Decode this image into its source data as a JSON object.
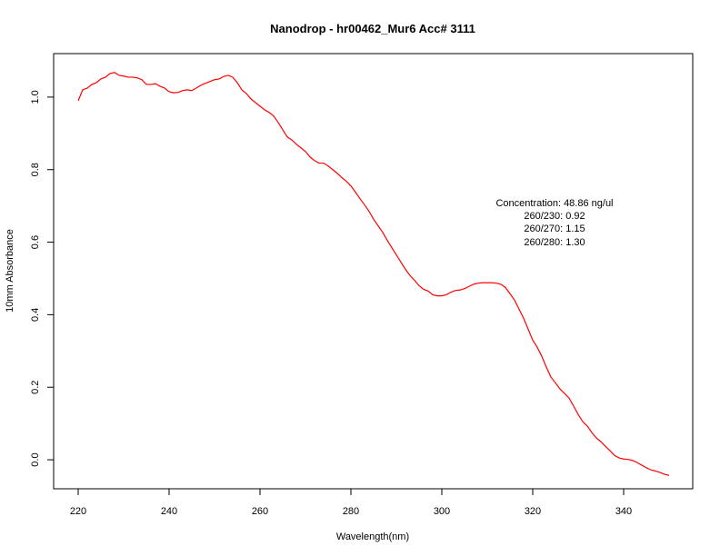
{
  "chart_data": {
    "type": "line",
    "title": "Nanodrop - hr00462_Mur6 Acc# 3111",
    "xlabel": "Wavelength(nm)",
    "ylabel": "10mm Absorbance",
    "xlim": [
      220,
      350
    ],
    "ylim": [
      -0.08,
      1.12
    ],
    "x_ticks": [
      220,
      240,
      260,
      280,
      300,
      320,
      340
    ],
    "x_tick_labels": [
      "220",
      "240",
      "260",
      "280",
      "300",
      "320",
      "340"
    ],
    "y_ticks": [
      0.0,
      0.2,
      0.4,
      0.6,
      0.8,
      1.0
    ],
    "y_tick_labels": [
      "0.0",
      "0.2",
      "0.4",
      "0.6",
      "0.8",
      "1.0"
    ],
    "grid": false,
    "series": [
      {
        "color": "#ff0000",
        "points": [
          [
            220,
            0.99
          ],
          [
            221,
            1.02
          ],
          [
            222,
            1.025
          ],
          [
            223,
            1.035
          ],
          [
            224,
            1.04
          ],
          [
            225,
            1.05
          ],
          [
            226,
            1.055
          ],
          [
            227,
            1.065
          ],
          [
            228,
            1.068
          ],
          [
            229,
            1.06
          ],
          [
            230,
            1.058
          ],
          [
            231,
            1.055
          ],
          [
            232,
            1.055
          ],
          [
            233,
            1.053
          ],
          [
            234,
            1.048
          ],
          [
            235,
            1.035
          ],
          [
            236,
            1.035
          ],
          [
            237,
            1.037
          ],
          [
            238,
            1.03
          ],
          [
            239,
            1.025
          ],
          [
            240,
            1.015
          ],
          [
            241,
            1.012
          ],
          [
            242,
            1.013
          ],
          [
            243,
            1.018
          ],
          [
            244,
            1.02
          ],
          [
            245,
            1.018
          ],
          [
            246,
            1.025
          ],
          [
            247,
            1.033
          ],
          [
            248,
            1.038
          ],
          [
            249,
            1.043
          ],
          [
            250,
            1.048
          ],
          [
            251,
            1.05
          ],
          [
            252,
            1.057
          ],
          [
            253,
            1.06
          ],
          [
            254,
            1.055
          ],
          [
            255,
            1.04
          ],
          [
            256,
            1.02
          ],
          [
            257,
            1.01
          ],
          [
            258,
            0.995
          ],
          [
            259,
            0.985
          ],
          [
            260,
            0.975
          ],
          [
            261,
            0.965
          ],
          [
            262,
            0.958
          ],
          [
            263,
            0.948
          ],
          [
            264,
            0.93
          ],
          [
            265,
            0.91
          ],
          [
            266,
            0.89
          ],
          [
            267,
            0.882
          ],
          [
            268,
            0.87
          ],
          [
            269,
            0.86
          ],
          [
            270,
            0.85
          ],
          [
            271,
            0.835
          ],
          [
            272,
            0.825
          ],
          [
            273,
            0.818
          ],
          [
            274,
            0.818
          ],
          [
            275,
            0.81
          ],
          [
            276,
            0.8
          ],
          [
            277,
            0.79
          ],
          [
            278,
            0.778
          ],
          [
            279,
            0.768
          ],
          [
            280,
            0.755
          ],
          [
            281,
            0.738
          ],
          [
            282,
            0.72
          ],
          [
            283,
            0.703
          ],
          [
            284,
            0.685
          ],
          [
            285,
            0.663
          ],
          [
            286,
            0.645
          ],
          [
            287,
            0.627
          ],
          [
            288,
            0.605
          ],
          [
            289,
            0.585
          ],
          [
            290,
            0.565
          ],
          [
            291,
            0.545
          ],
          [
            292,
            0.525
          ],
          [
            293,
            0.508
          ],
          [
            294,
            0.495
          ],
          [
            295,
            0.48
          ],
          [
            296,
            0.47
          ],
          [
            297,
            0.465
          ],
          [
            298,
            0.455
          ],
          [
            299,
            0.452
          ],
          [
            300,
            0.452
          ],
          [
            301,
            0.455
          ],
          [
            302,
            0.462
          ],
          [
            303,
            0.467
          ],
          [
            304,
            0.468
          ],
          [
            305,
            0.472
          ],
          [
            306,
            0.478
          ],
          [
            307,
            0.484
          ],
          [
            308,
            0.487
          ],
          [
            309,
            0.488
          ],
          [
            310,
            0.488
          ],
          [
            311,
            0.488
          ],
          [
            312,
            0.487
          ],
          [
            313,
            0.484
          ],
          [
            314,
            0.475
          ],
          [
            315,
            0.458
          ],
          [
            316,
            0.44
          ],
          [
            317,
            0.415
          ],
          [
            318,
            0.39
          ],
          [
            319,
            0.36
          ],
          [
            320,
            0.33
          ],
          [
            321,
            0.31
          ],
          [
            322,
            0.285
          ],
          [
            323,
            0.255
          ],
          [
            324,
            0.228
          ],
          [
            325,
            0.212
          ],
          [
            326,
            0.195
          ],
          [
            327,
            0.183
          ],
          [
            328,
            0.17
          ],
          [
            329,
            0.148
          ],
          [
            330,
            0.125
          ],
          [
            331,
            0.105
          ],
          [
            332,
            0.093
          ],
          [
            333,
            0.075
          ],
          [
            334,
            0.06
          ],
          [
            335,
            0.05
          ],
          [
            336,
            0.037
          ],
          [
            337,
            0.025
          ],
          [
            338,
            0.012
          ],
          [
            339,
            0.005
          ],
          [
            340,
            0.002
          ],
          [
            341,
            0.001
          ],
          [
            342,
            -0.002
          ],
          [
            343,
            -0.008
          ],
          [
            344,
            -0.015
          ],
          [
            345,
            -0.022
          ],
          [
            346,
            -0.028
          ],
          [
            347,
            -0.031
          ],
          [
            348,
            -0.035
          ],
          [
            349,
            -0.04
          ],
          [
            350,
            -0.043
          ]
        ]
      }
    ],
    "annotations": [
      "Concentration: 48.86 ng/ul",
      "260/230: 0.92",
      "260/270: 1.15",
      "260/280: 1.30"
    ]
  }
}
